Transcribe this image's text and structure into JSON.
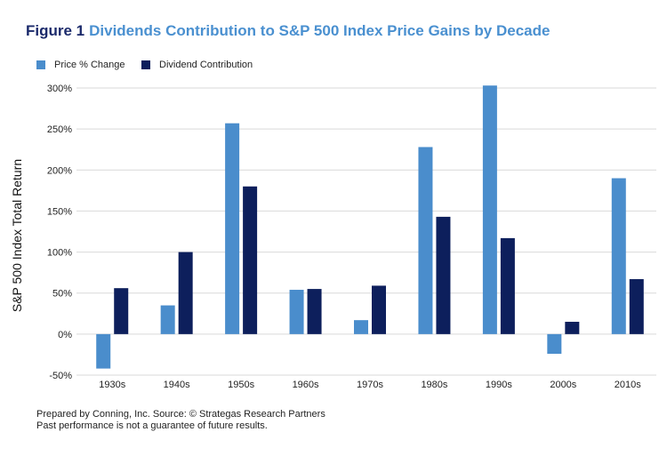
{
  "title": {
    "prefix": "Figure 1",
    "text": "Dividends Contribution to S&P 500 Index Price Gains by Decade"
  },
  "colors": {
    "title_prefix": "#1b2a6b",
    "title_text": "#4a90d0",
    "price": "#4a8dcc",
    "dividend": "#0d1f5c",
    "grid": "#d9d9d9"
  },
  "chart_data": {
    "type": "bar",
    "categories": [
      "1930s",
      "1940s",
      "1950s",
      "1960s",
      "1970s",
      "1980s",
      "1990s",
      "2000s",
      "2010s"
    ],
    "series": [
      {
        "name": "Price % Change",
        "values": [
          -42,
          35,
          257,
          54,
          17,
          228,
          303,
          -24,
          190
        ]
      },
      {
        "name": "Dividend Contribution",
        "values": [
          56,
          100,
          180,
          55,
          59,
          143,
          117,
          15,
          67
        ]
      }
    ],
    "ylabel": "S&P 500 Index Total Return",
    "ylim": [
      -50,
      300
    ],
    "yticks": [
      -50,
      0,
      50,
      100,
      150,
      200,
      250,
      300
    ],
    "ytick_labels": [
      "-50%",
      "0%",
      "50%",
      "100%",
      "150%",
      "200%",
      "250%",
      "300%"
    ],
    "grid": true,
    "legend_position": "top-left"
  },
  "footnotes": [
    "Prepared by Conning, Inc. Source: © Strategas Research Partners",
    "Past performance is not a guarantee of future results."
  ]
}
